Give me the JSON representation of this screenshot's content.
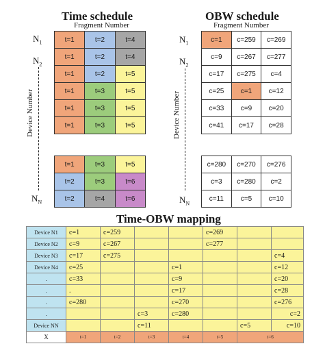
{
  "colors": {
    "orange": "#f0a57a",
    "blue": "#a9c4e8",
    "green": "#9ccc7c",
    "gray": "#a6a6a6",
    "yellow": "#fbf49a",
    "purple": "#c88ac9",
    "light_blue": "#bfe3f0"
  },
  "time_schedule": {
    "title": "Time schedule",
    "subtitle": "Fragment Number",
    "rows_top": [
      [
        {
          "t": "t=1",
          "c": "orange"
        },
        {
          "t": "t=2",
          "c": "blue"
        },
        {
          "t": "t=4",
          "c": "gray"
        }
      ],
      [
        {
          "t": "t=1",
          "c": "orange"
        },
        {
          "t": "t=2",
          "c": "blue"
        },
        {
          "t": "t=4",
          "c": "gray"
        }
      ],
      [
        {
          "t": "t=1",
          "c": "orange"
        },
        {
          "t": "t=2",
          "c": "blue"
        },
        {
          "t": "t=5",
          "c": "yellow"
        }
      ],
      [
        {
          "t": "t=1",
          "c": "orange"
        },
        {
          "t": "t=3",
          "c": "green"
        },
        {
          "t": "t=5",
          "c": "yellow"
        }
      ],
      [
        {
          "t": "t=1",
          "c": "orange"
        },
        {
          "t": "t=3",
          "c": "green"
        },
        {
          "t": "t=5",
          "c": "yellow"
        }
      ],
      [
        {
          "t": "t=1",
          "c": "orange"
        },
        {
          "t": "t=3",
          "c": "green"
        },
        {
          "t": "t=5",
          "c": "yellow"
        }
      ]
    ],
    "rows_bottom": [
      [
        {
          "t": "t=1",
          "c": "orange"
        },
        {
          "t": "t=3",
          "c": "green"
        },
        {
          "t": "t=5",
          "c": "yellow"
        }
      ],
      [
        {
          "t": "t=2",
          "c": "blue"
        },
        {
          "t": "t=3",
          "c": "green"
        },
        {
          "t": "t=6",
          "c": "purple"
        }
      ],
      [
        {
          "t": "t=2",
          "c": "blue"
        },
        {
          "t": "t=4",
          "c": "gray"
        },
        {
          "t": "t=6",
          "c": "purple"
        }
      ]
    ]
  },
  "obw_schedule": {
    "title": "OBW schedule",
    "subtitle": "Fragment Number",
    "rows_top": [
      [
        {
          "t": "c=1",
          "c": "orange"
        },
        {
          "t": "c=259"
        },
        {
          "t": "c=269"
        }
      ],
      [
        {
          "t": "c=9"
        },
        {
          "t": "c=267"
        },
        {
          "t": "c=277"
        }
      ],
      [
        {
          "t": "c=17"
        },
        {
          "t": "c=275"
        },
        {
          "t": "c=4"
        }
      ],
      [
        {
          "t": "c=25"
        },
        {
          "t": "c=1",
          "c": "orange"
        },
        {
          "t": "c=12"
        }
      ],
      [
        {
          "t": "c=33"
        },
        {
          "t": "c=9"
        },
        {
          "t": "c=20"
        }
      ],
      [
        {
          "t": "c=41"
        },
        {
          "t": "c=17"
        },
        {
          "t": "c=28"
        }
      ]
    ],
    "rows_bottom": [
      [
        {
          "t": "c=280"
        },
        {
          "t": "c=270"
        },
        {
          "t": "c=276"
        }
      ],
      [
        {
          "t": "c=3"
        },
        {
          "t": "c=280"
        },
        {
          "t": "c=2"
        }
      ],
      [
        {
          "t": "c=11"
        },
        {
          "t": "c=5"
        },
        {
          "t": "c=10"
        }
      ]
    ]
  },
  "labels": {
    "device_number": "Device Number",
    "n1": "N",
    "n1_sub": "1",
    "n2": "N",
    "n2_sub": "2",
    "nn": "N",
    "nn_sub": "N"
  },
  "mapping": {
    "title": "Time-OBW mapping",
    "rows": [
      {
        "device": "Device N1",
        "cells": [
          "c=1",
          "c=259",
          "",
          "",
          "c=269",
          "",
          "",
          ""
        ]
      },
      {
        "device": "Device N2",
        "cells": [
          "c=9",
          "c=267",
          "",
          "",
          "c=277",
          "",
          "",
          ""
        ]
      },
      {
        "device": "Device N3",
        "cells": [
          "c=17",
          "c=275",
          "",
          "",
          "",
          "",
          "c=4",
          ""
        ]
      },
      {
        "device": "Device N4",
        "cells": [
          "c=25",
          "",
          "",
          "c=1",
          "",
          "",
          "c=12",
          ""
        ]
      },
      {
        "device": ".",
        "cells": [
          "c=33",
          "",
          "",
          "c=9",
          "",
          "",
          "c=20",
          ""
        ]
      },
      {
        "device": ".",
        "cells": [
          ".",
          "",
          "",
          "c=17",
          "",
          "",
          "c=28",
          ""
        ]
      },
      {
        "device": ".",
        "cells": [
          "c=280",
          "",
          "",
          "c=270",
          "",
          "",
          "c=276",
          ""
        ]
      },
      {
        "device": ".",
        "cells": [
          "",
          "",
          "c=3",
          "c=280",
          "",
          "",
          "",
          "c=2"
        ]
      },
      {
        "device": "Device NN",
        "cells": [
          "",
          "",
          "c=11",
          "",
          "",
          "c=5",
          "",
          "c=10"
        ]
      }
    ],
    "x_label": "X",
    "time_slots": [
      "t=1",
      "t=2",
      "t=3",
      "t=4",
      "t=5",
      "t=6"
    ]
  }
}
